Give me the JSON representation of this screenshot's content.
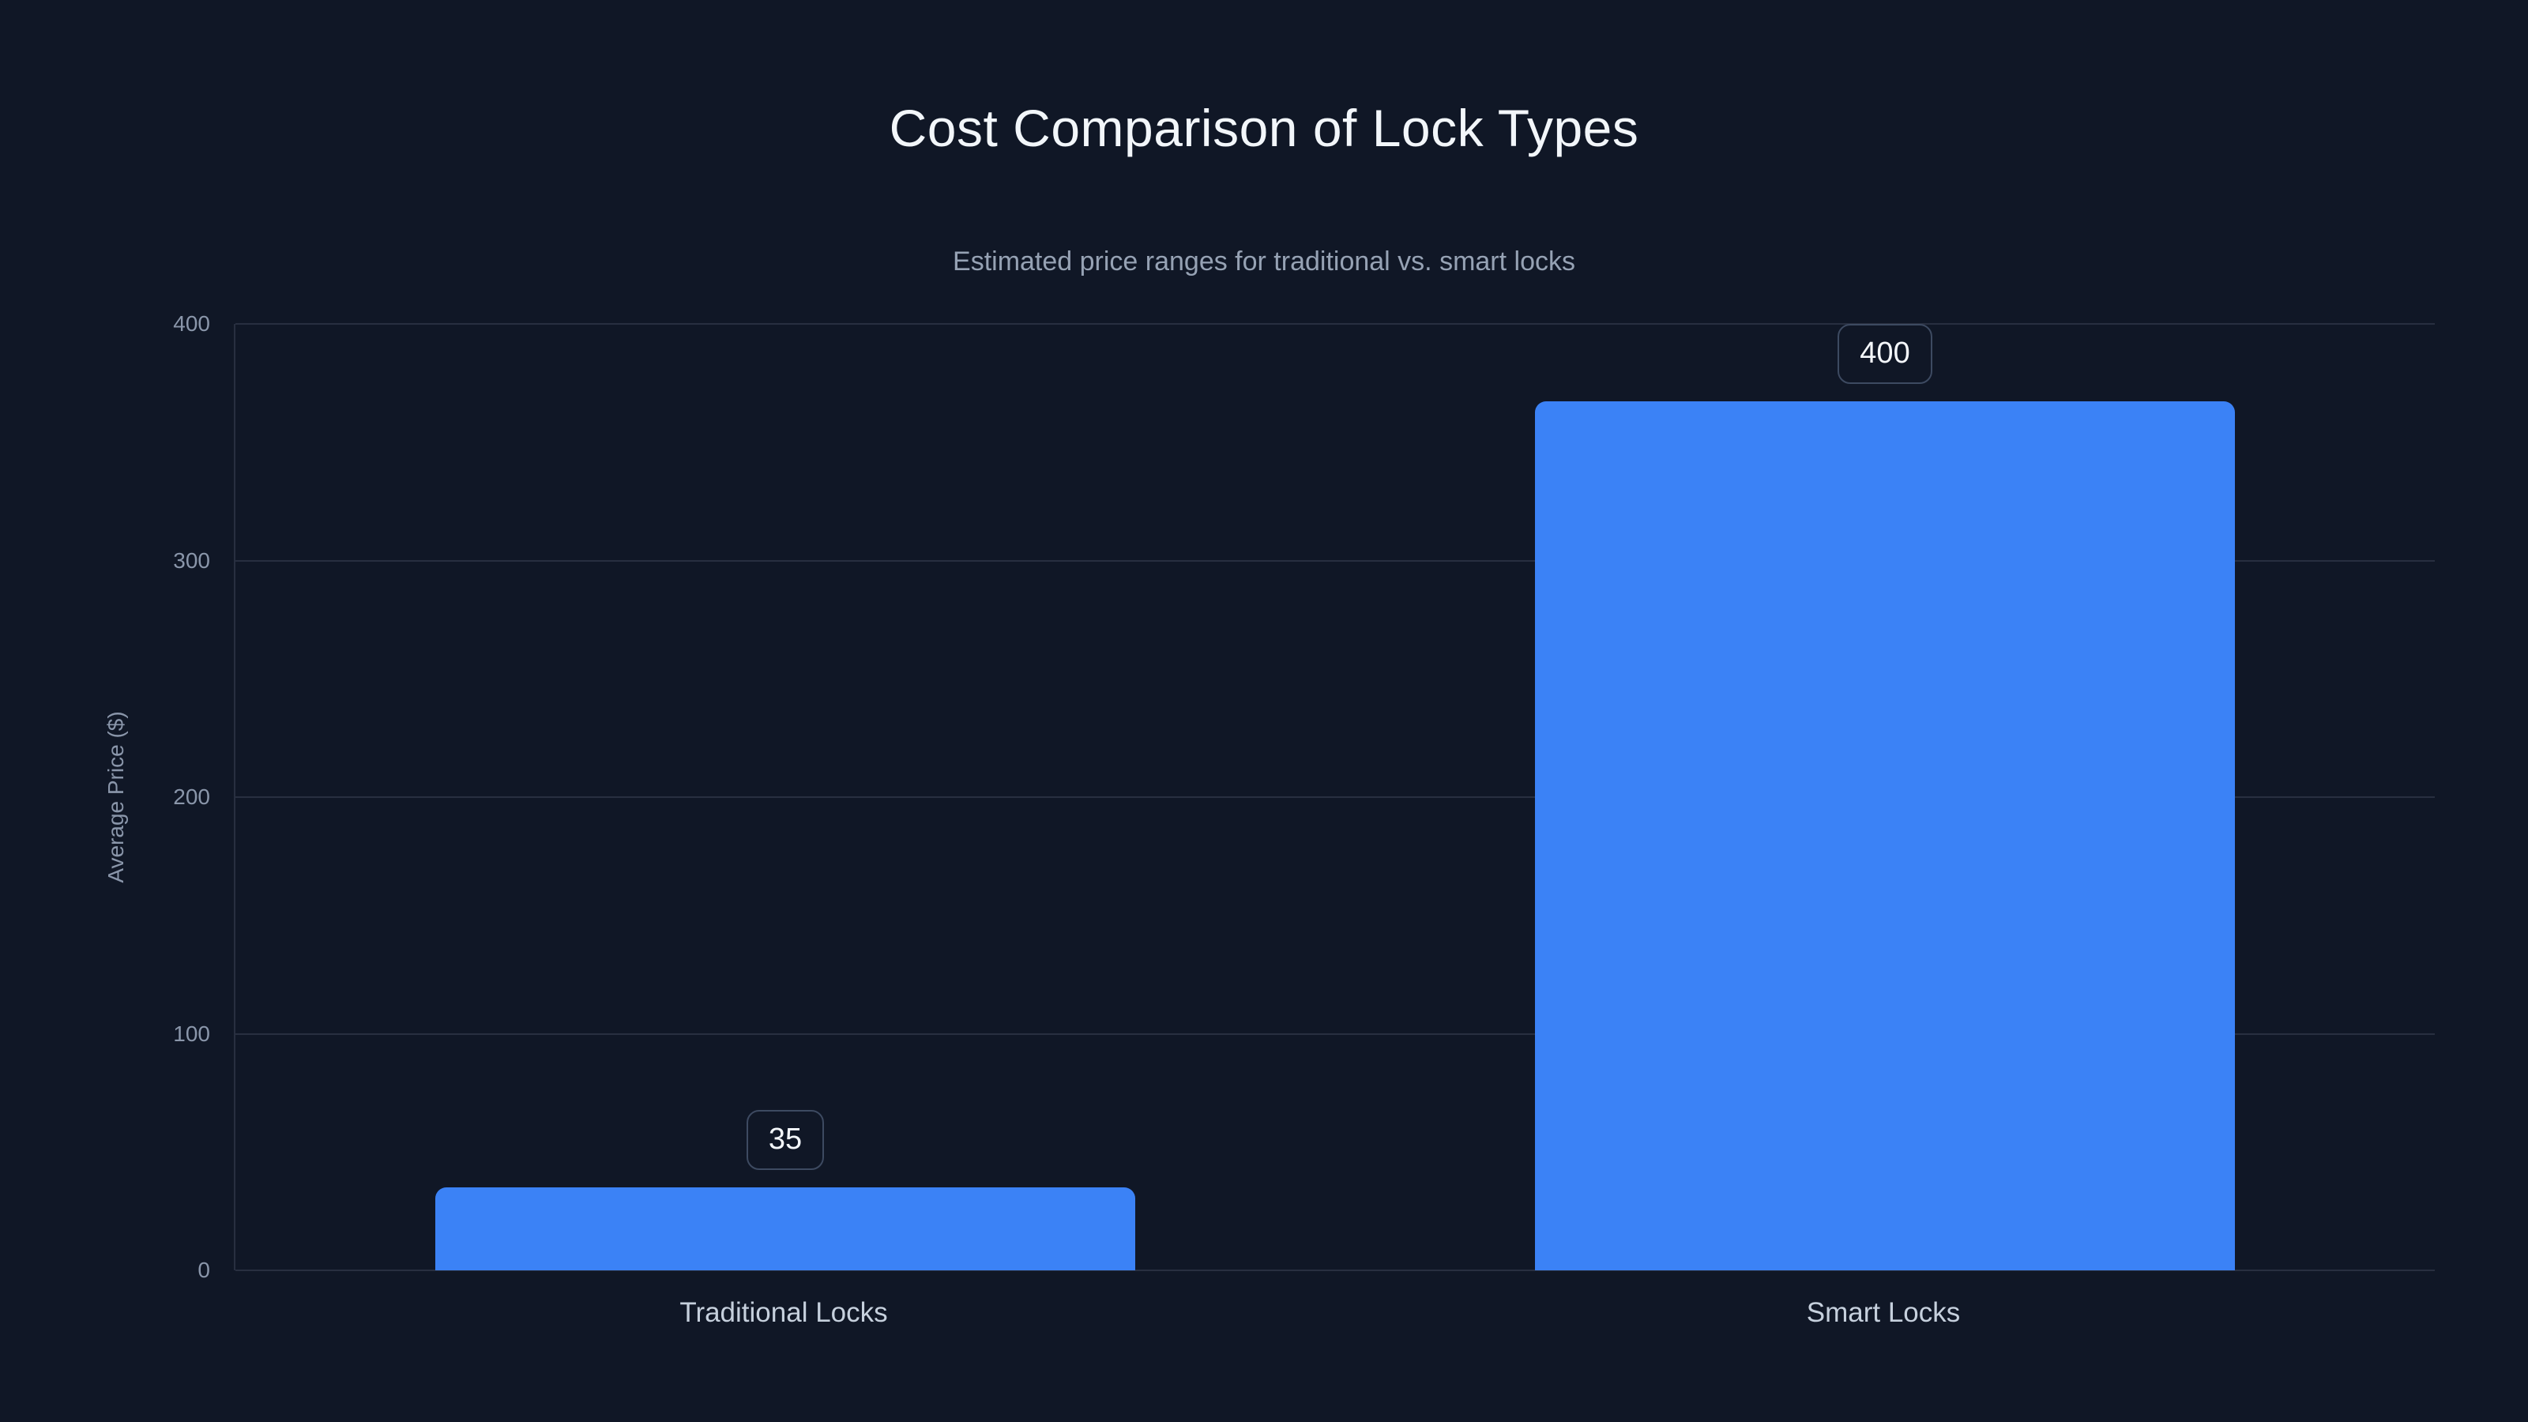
{
  "title": "Cost Comparison of Lock Types",
  "subtitle": "Estimated price ranges for traditional vs. smart locks",
  "chart_data": {
    "type": "bar",
    "title": "Cost Comparison of Lock Types",
    "subtitle": "Estimated price ranges for traditional vs. smart locks",
    "categories": [
      "Traditional Locks",
      "Smart Locks"
    ],
    "values": [
      35,
      400
    ],
    "data_labels": [
      "35",
      "400"
    ],
    "xlabel": "",
    "ylabel": "Average Price ($)",
    "ylim": [
      0,
      400
    ],
    "yticks": [
      0,
      100,
      200,
      300,
      400
    ],
    "grid": true,
    "legend": false,
    "colors": {
      "background": "#101726",
      "bar": "#3b82f6",
      "gridline": "rgba(148,163,184,0.18)",
      "title_text": "#f2f6fa",
      "subtitle_text": "#96a2b4",
      "tick_text": "#8a96aa",
      "category_text": "#c6d0dd",
      "badge_border": "#3d4a61",
      "badge_text": "#f4f7fb"
    }
  }
}
